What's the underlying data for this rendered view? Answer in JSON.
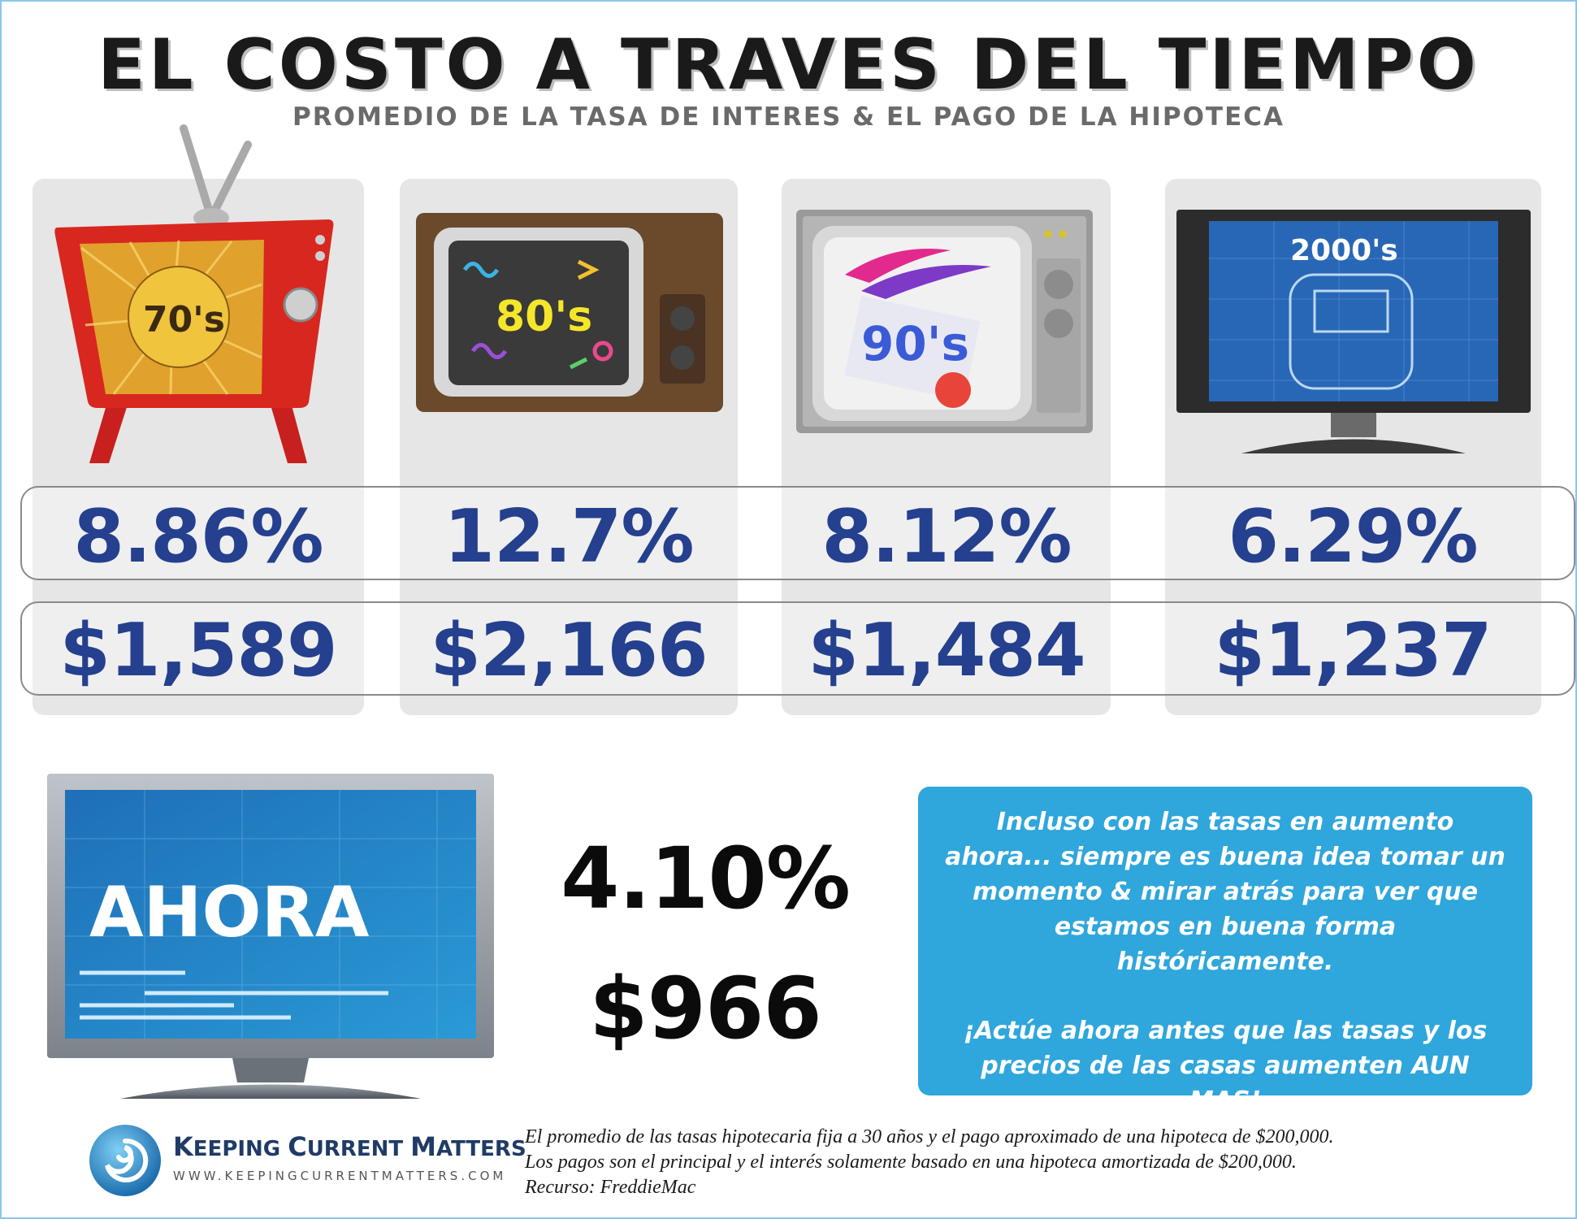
{
  "header": {
    "title": "EL COSTO A TRAVES DEL TIEMPO",
    "subtitle": "PROMEDIO DE LA TASA DE INTERES & EL PAGO DE LA HIPOTECA"
  },
  "decades": [
    {
      "label": "70's",
      "rate": "8.86%",
      "payment": "$1,589"
    },
    {
      "label": "80's",
      "rate": "12.7%",
      "payment": "$2,166"
    },
    {
      "label": "90's",
      "rate": "8.12%",
      "payment": "$1,484"
    },
    {
      "label": "2000's",
      "rate": "6.29%",
      "payment": "$1,237"
    }
  ],
  "now": {
    "label": "AHORA",
    "rate": "4.10%",
    "payment": "$966"
  },
  "callout": {
    "paragraph1": "Incluso con las tasas en aumento ahora... siempre es buena idea tomar un momento & mirar atrás para ver que estamos en buena forma históricamente.",
    "paragraph2": "¡Actúe ahora antes que las tasas y los precios de las casas aumenten AUN MAS!"
  },
  "logo": {
    "name_part1": "K",
    "name_part2": "EEPING ",
    "name_part3": "C",
    "name_part4": "URRENT ",
    "name_part5": "M",
    "name_part6": "ATTERS",
    "url": "WWW.KEEPINGCURRENTMATTERS.COM"
  },
  "footnote": {
    "line1": "El promedio de las tasas hipotecaria fija a 30 años y el pago aproximado de una hipoteca de $200,000.",
    "line2": "Los pagos son el principal y el interés solamente basado en una hipoteca amortizada de $200,000.",
    "line3": "Recurso: FreddieMac"
  },
  "colors": {
    "value_blue": "#24408e",
    "callout_blue": "#2fa6dc",
    "card_gray": "#e6e6e6"
  }
}
